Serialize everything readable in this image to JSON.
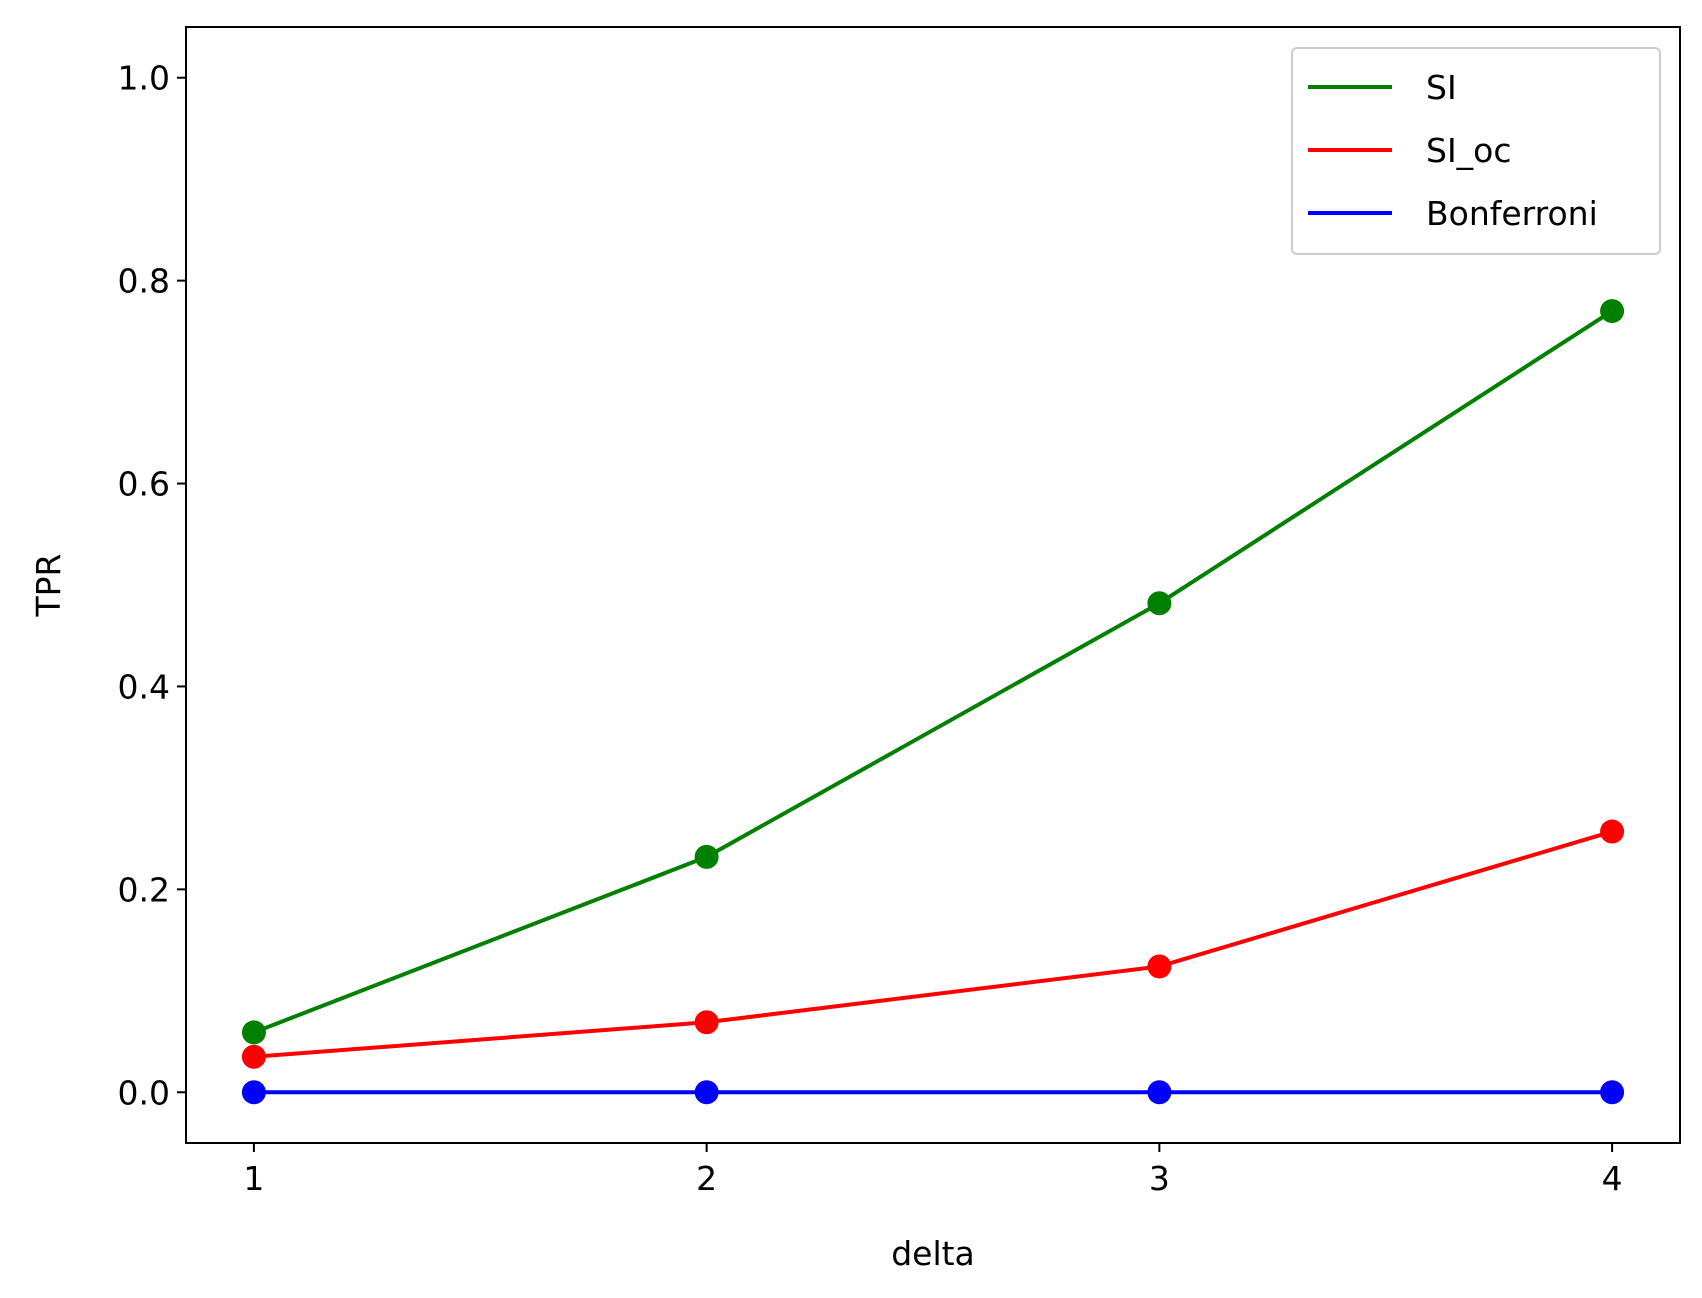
{
  "chart_data": {
    "type": "line",
    "title": "",
    "xlabel": "delta",
    "ylabel": "TPR",
    "x": [
      1,
      2,
      3,
      4
    ],
    "xlim": [
      0.85,
      4.15
    ],
    "ylim": [
      -0.05,
      1.05
    ],
    "xticks": [
      1,
      2,
      3,
      4
    ],
    "xtick_labels": [
      "1",
      "2",
      "3",
      "4"
    ],
    "yticks": [
      0.0,
      0.2,
      0.4,
      0.6,
      0.8,
      1.0
    ],
    "ytick_labels": [
      "0.0",
      "0.2",
      "0.4",
      "0.6",
      "0.8",
      "1.0"
    ],
    "grid": false,
    "legend_position": "top-right",
    "markers": true,
    "series": [
      {
        "name": "SI",
        "color": "#008000",
        "values": [
          0.059,
          0.232,
          0.482,
          0.77
        ]
      },
      {
        "name": "SI_oc",
        "color": "#ff0000",
        "values": [
          0.035,
          0.069,
          0.124,
          0.257
        ]
      },
      {
        "name": "Bonferroni",
        "color": "#0000ff",
        "values": [
          0.0,
          0.0,
          0.0,
          0.0
        ]
      }
    ]
  }
}
